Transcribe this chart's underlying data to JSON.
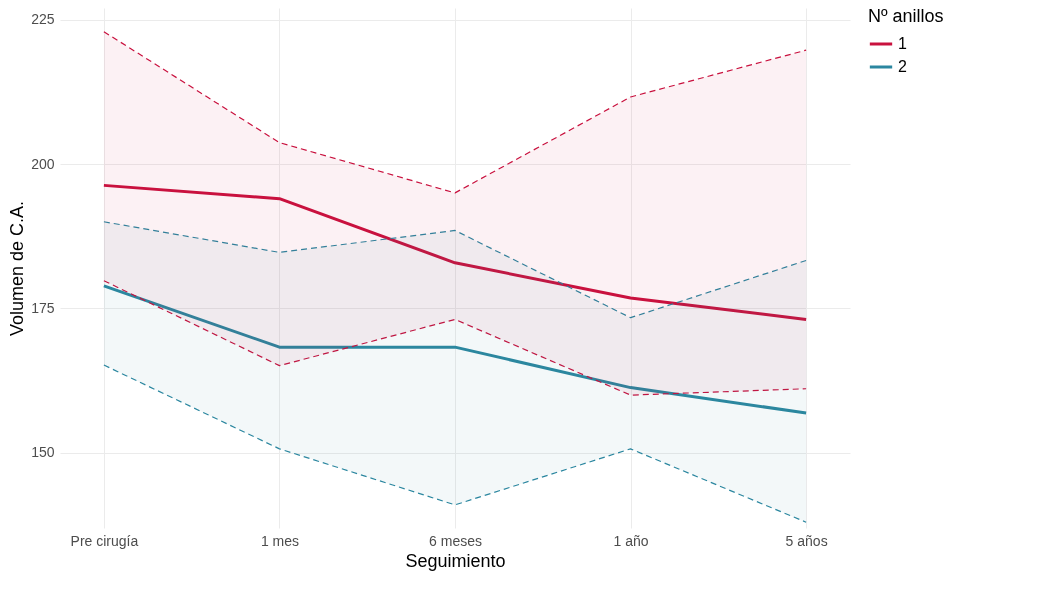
{
  "chart_data": {
    "type": "line",
    "xlabel": "Seguimiento",
    "ylabel": "Volumen de C.A.",
    "legend_title": "Nº anillos",
    "legend": "right",
    "grid": true,
    "marker": "none",
    "categories": [
      "Pre cirugía",
      "1 mes",
      "6 meses",
      "1 año",
      "5 años"
    ],
    "ylim": [
      137,
      227
    ],
    "yticks": [
      150,
      175,
      200,
      225
    ],
    "series": [
      {
        "name": "1",
        "color": "#c9113e",
        "line_style": "solid",
        "values": [
          196.3,
          194.0,
          182.9,
          176.8,
          173.1
        ],
        "lower": [
          179.8,
          165.1,
          173.1,
          160.0,
          161.1
        ],
        "upper": [
          222.9,
          203.7,
          195.0,
          211.6,
          219.7
        ]
      },
      {
        "name": "2",
        "color": "#2b87a0",
        "line_style": "solid",
        "values": [
          178.9,
          168.3,
          168.3,
          161.3,
          156.9
        ],
        "lower": [
          165.2,
          150.7,
          141.0,
          150.7,
          138.0
        ],
        "upper": [
          190.0,
          184.7,
          188.5,
          173.4,
          183.3
        ]
      },
      {
        "color": "#c9113e",
        "line_style": "dashed",
        "values": [
          179.8,
          165.1,
          173.1,
          160.0,
          161.1
        ]
      },
      {
        "color": "#c9113e",
        "line_style": "dashed",
        "values": [
          222.9,
          203.7,
          195.0,
          211.6,
          219.7
        ]
      },
      {
        "color": "#2b87a0",
        "line_style": "dashed",
        "values": [
          165.2,
          150.7,
          141.0,
          150.7,
          138.0
        ]
      },
      {
        "color": "#2b87a0",
        "line_style": "dashed",
        "values": [
          190.0,
          184.7,
          188.5,
          173.4,
          183.3
        ]
      }
    ]
  }
}
